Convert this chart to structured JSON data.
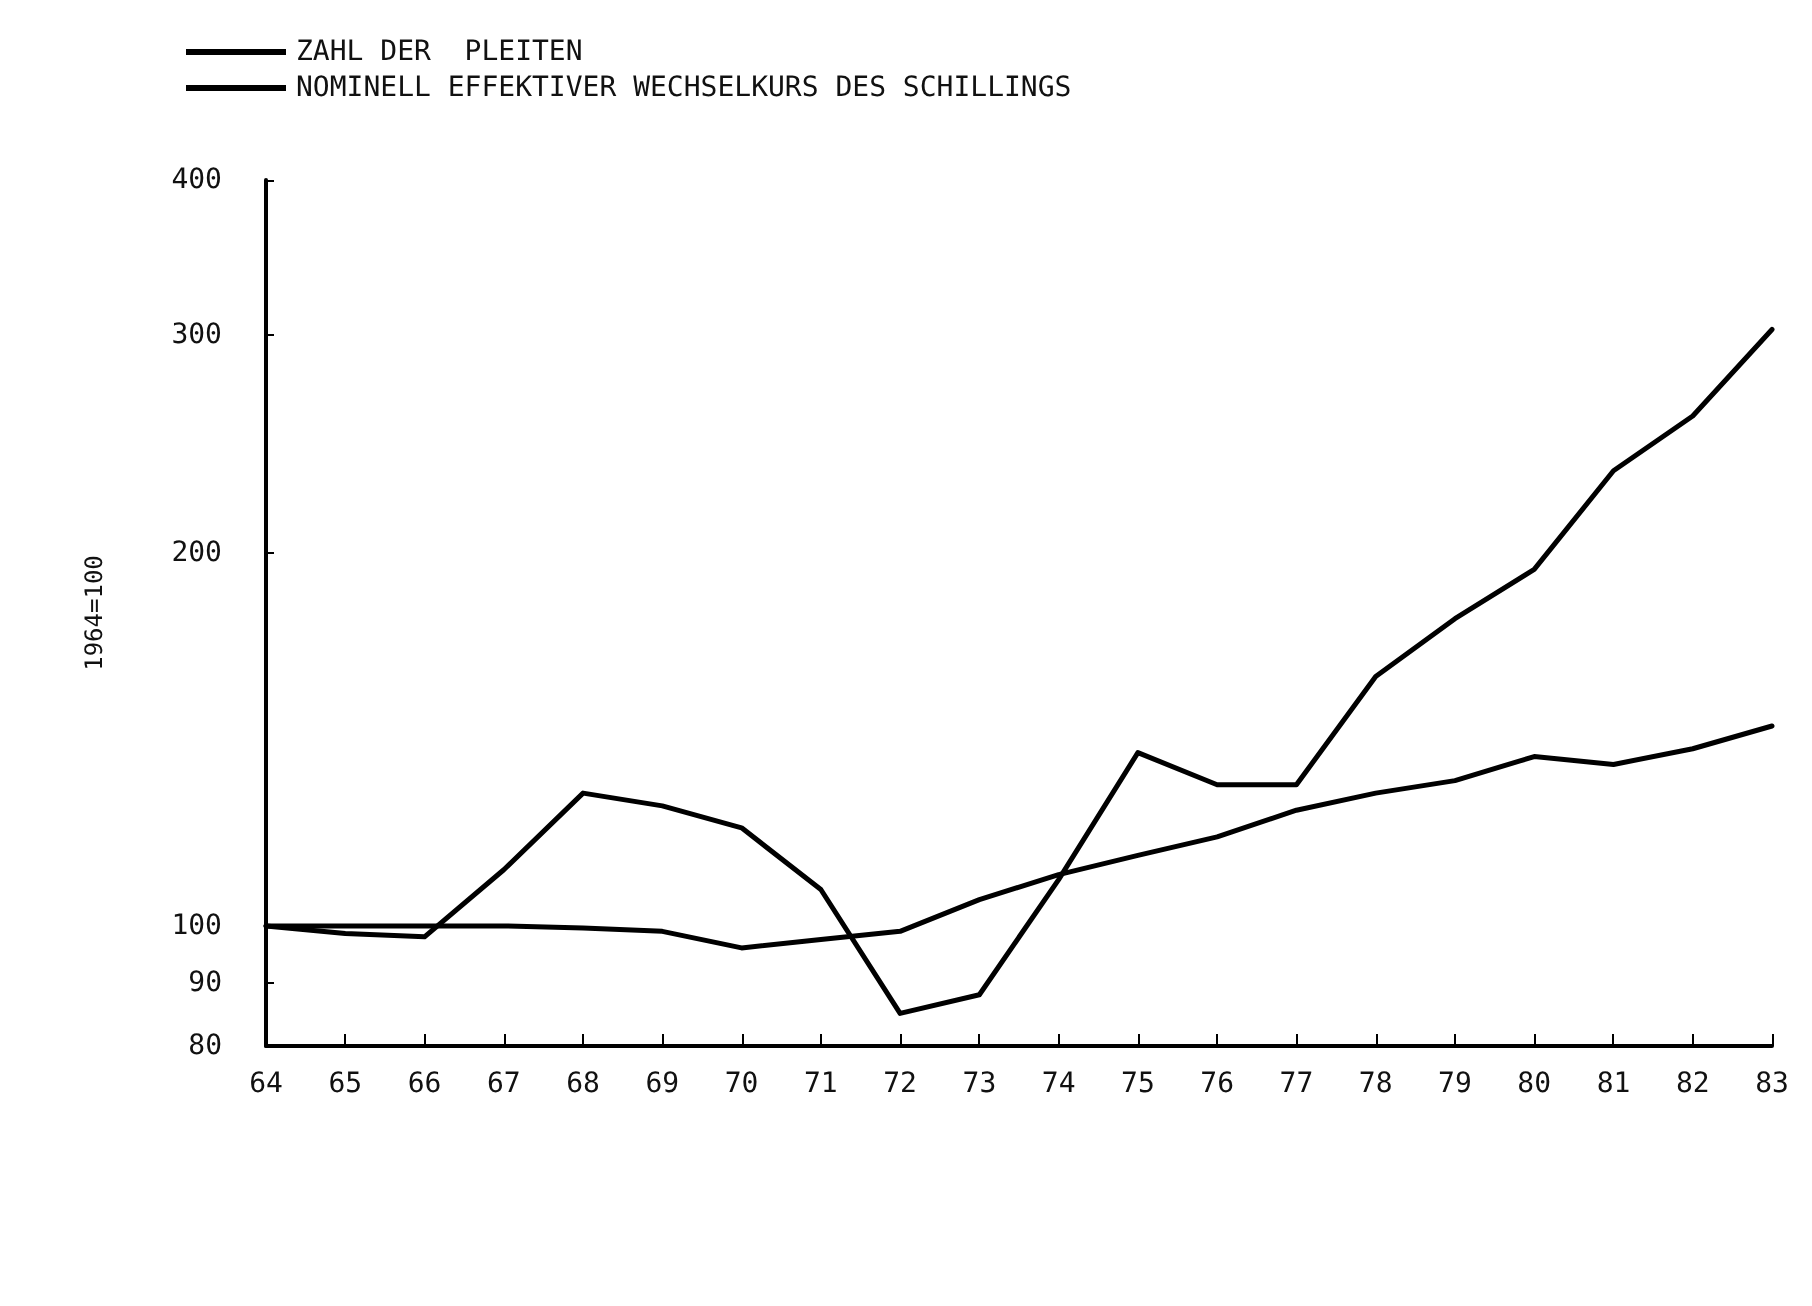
{
  "chart_data": {
    "type": "line",
    "ylabel": "1964=100",
    "categories": [
      "64",
      "65",
      "66",
      "67",
      "68",
      "69",
      "70",
      "71",
      "72",
      "73",
      "74",
      "75",
      "76",
      "77",
      "78",
      "79",
      "80",
      "81",
      "82",
      "83"
    ],
    "series": [
      {
        "name": "ZAHL DER  PLEITEN",
        "color": "#000000",
        "values": [
          100,
          98.6,
          98,
          111,
          128,
          125,
          120,
          107,
          85,
          88,
          109,
          138,
          130,
          130,
          159,
          177,
          194,
          233,
          258,
          303
        ]
      },
      {
        "name": "NOMINELL EFFEKTIVER WECHSELKURS DES SCHILLINGS",
        "color": "#000000",
        "values": [
          100,
          100,
          100,
          100,
          99.6,
          99,
          96,
          97.5,
          99,
          105,
          110,
          114,
          118,
          124,
          128,
          131,
          137,
          135,
          139,
          145
        ]
      }
    ],
    "log": "y",
    "ylim": [
      80,
      400
    ],
    "yticks": [
      80,
      90,
      100,
      200,
      300,
      400
    ],
    "grid": false,
    "legend": "top left",
    "marker": "none",
    "line_style": "solid"
  }
}
